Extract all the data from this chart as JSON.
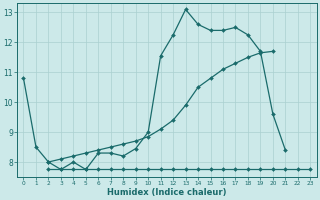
{
  "xlabel": "Humidex (Indice chaleur)",
  "bg_color": "#cce9e9",
  "grid_color": "#aad0d0",
  "line_color": "#1a6b6b",
  "xlim": [
    -0.5,
    23.5
  ],
  "ylim": [
    7.5,
    13.3
  ],
  "yticks": [
    8,
    9,
    10,
    11,
    12,
    13
  ],
  "xticks": [
    0,
    1,
    2,
    3,
    4,
    5,
    6,
    7,
    8,
    9,
    10,
    11,
    12,
    13,
    14,
    15,
    16,
    17,
    18,
    19,
    20,
    21,
    22,
    23
  ],
  "line1_x": [
    0,
    1,
    2,
    3,
    4,
    5,
    6,
    7,
    8,
    9,
    10,
    11,
    12,
    13,
    14,
    15,
    16,
    17,
    18,
    19,
    20,
    21
  ],
  "line1_y": [
    10.8,
    8.5,
    8.0,
    7.75,
    8.0,
    7.75,
    8.3,
    8.3,
    8.2,
    8.45,
    9.0,
    11.55,
    12.25,
    13.1,
    12.6,
    12.4,
    12.4,
    12.5,
    12.25,
    11.7,
    9.6,
    8.4
  ],
  "line2_x": [
    2,
    3,
    4,
    5,
    6,
    7,
    8,
    9,
    10,
    11,
    12,
    13,
    14,
    15,
    16,
    17,
    18,
    19,
    20,
    21,
    22,
    23
  ],
  "line2_y": [
    7.75,
    7.75,
    7.75,
    7.75,
    7.75,
    7.75,
    7.75,
    7.75,
    7.75,
    7.75,
    7.75,
    7.75,
    7.75,
    7.75,
    7.75,
    7.75,
    7.75,
    7.75,
    7.75,
    7.75,
    7.75,
    7.75
  ],
  "line3_x": [
    2,
    3,
    4,
    5,
    6,
    7,
    8,
    9,
    10,
    11,
    12,
    13,
    14,
    15,
    16,
    17,
    18,
    19,
    20
  ],
  "line3_y": [
    8.0,
    8.1,
    8.2,
    8.3,
    8.4,
    8.5,
    8.6,
    8.7,
    8.85,
    9.1,
    9.4,
    9.9,
    10.5,
    10.8,
    11.1,
    11.3,
    11.5,
    11.65,
    11.7
  ]
}
